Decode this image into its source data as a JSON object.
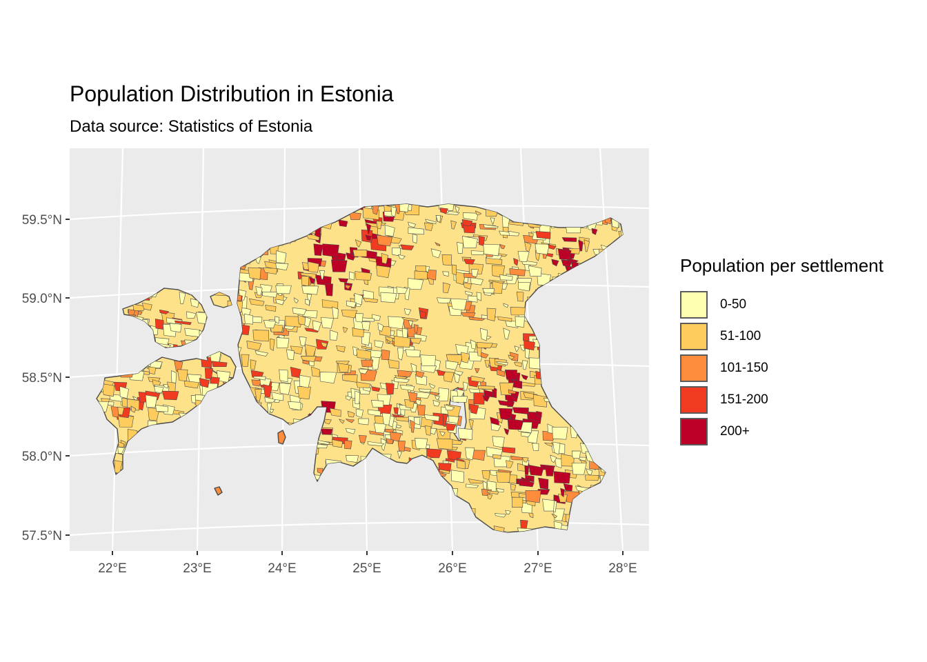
{
  "map": {
    "title": "Population Distribution in Estonia",
    "subtitle": "Data source: Statistics of Estonia",
    "x_axis": {
      "ticks": [
        "22°E",
        "23°E",
        "24°E",
        "25°E",
        "26°E",
        "27°E",
        "28°E"
      ]
    },
    "y_axis": {
      "ticks": [
        "59.5°N",
        "59.0°N",
        "58.5°N",
        "58.0°N",
        "57.5°N"
      ]
    },
    "legend": {
      "title": "Population per settlement",
      "items": [
        {
          "label": "0-50",
          "color": "#ffffb2"
        },
        {
          "label": "51-100",
          "color": "#fecc5c"
        },
        {
          "label": "101-150",
          "color": "#fd8d3c"
        },
        {
          "label": "151-200",
          "color": "#f03b20"
        },
        {
          "label": "200+",
          "color": "#bd0026"
        }
      ]
    },
    "colors": {
      "panel": "#ebebeb",
      "grid": "#ffffff",
      "border": "#555555"
    }
  }
}
